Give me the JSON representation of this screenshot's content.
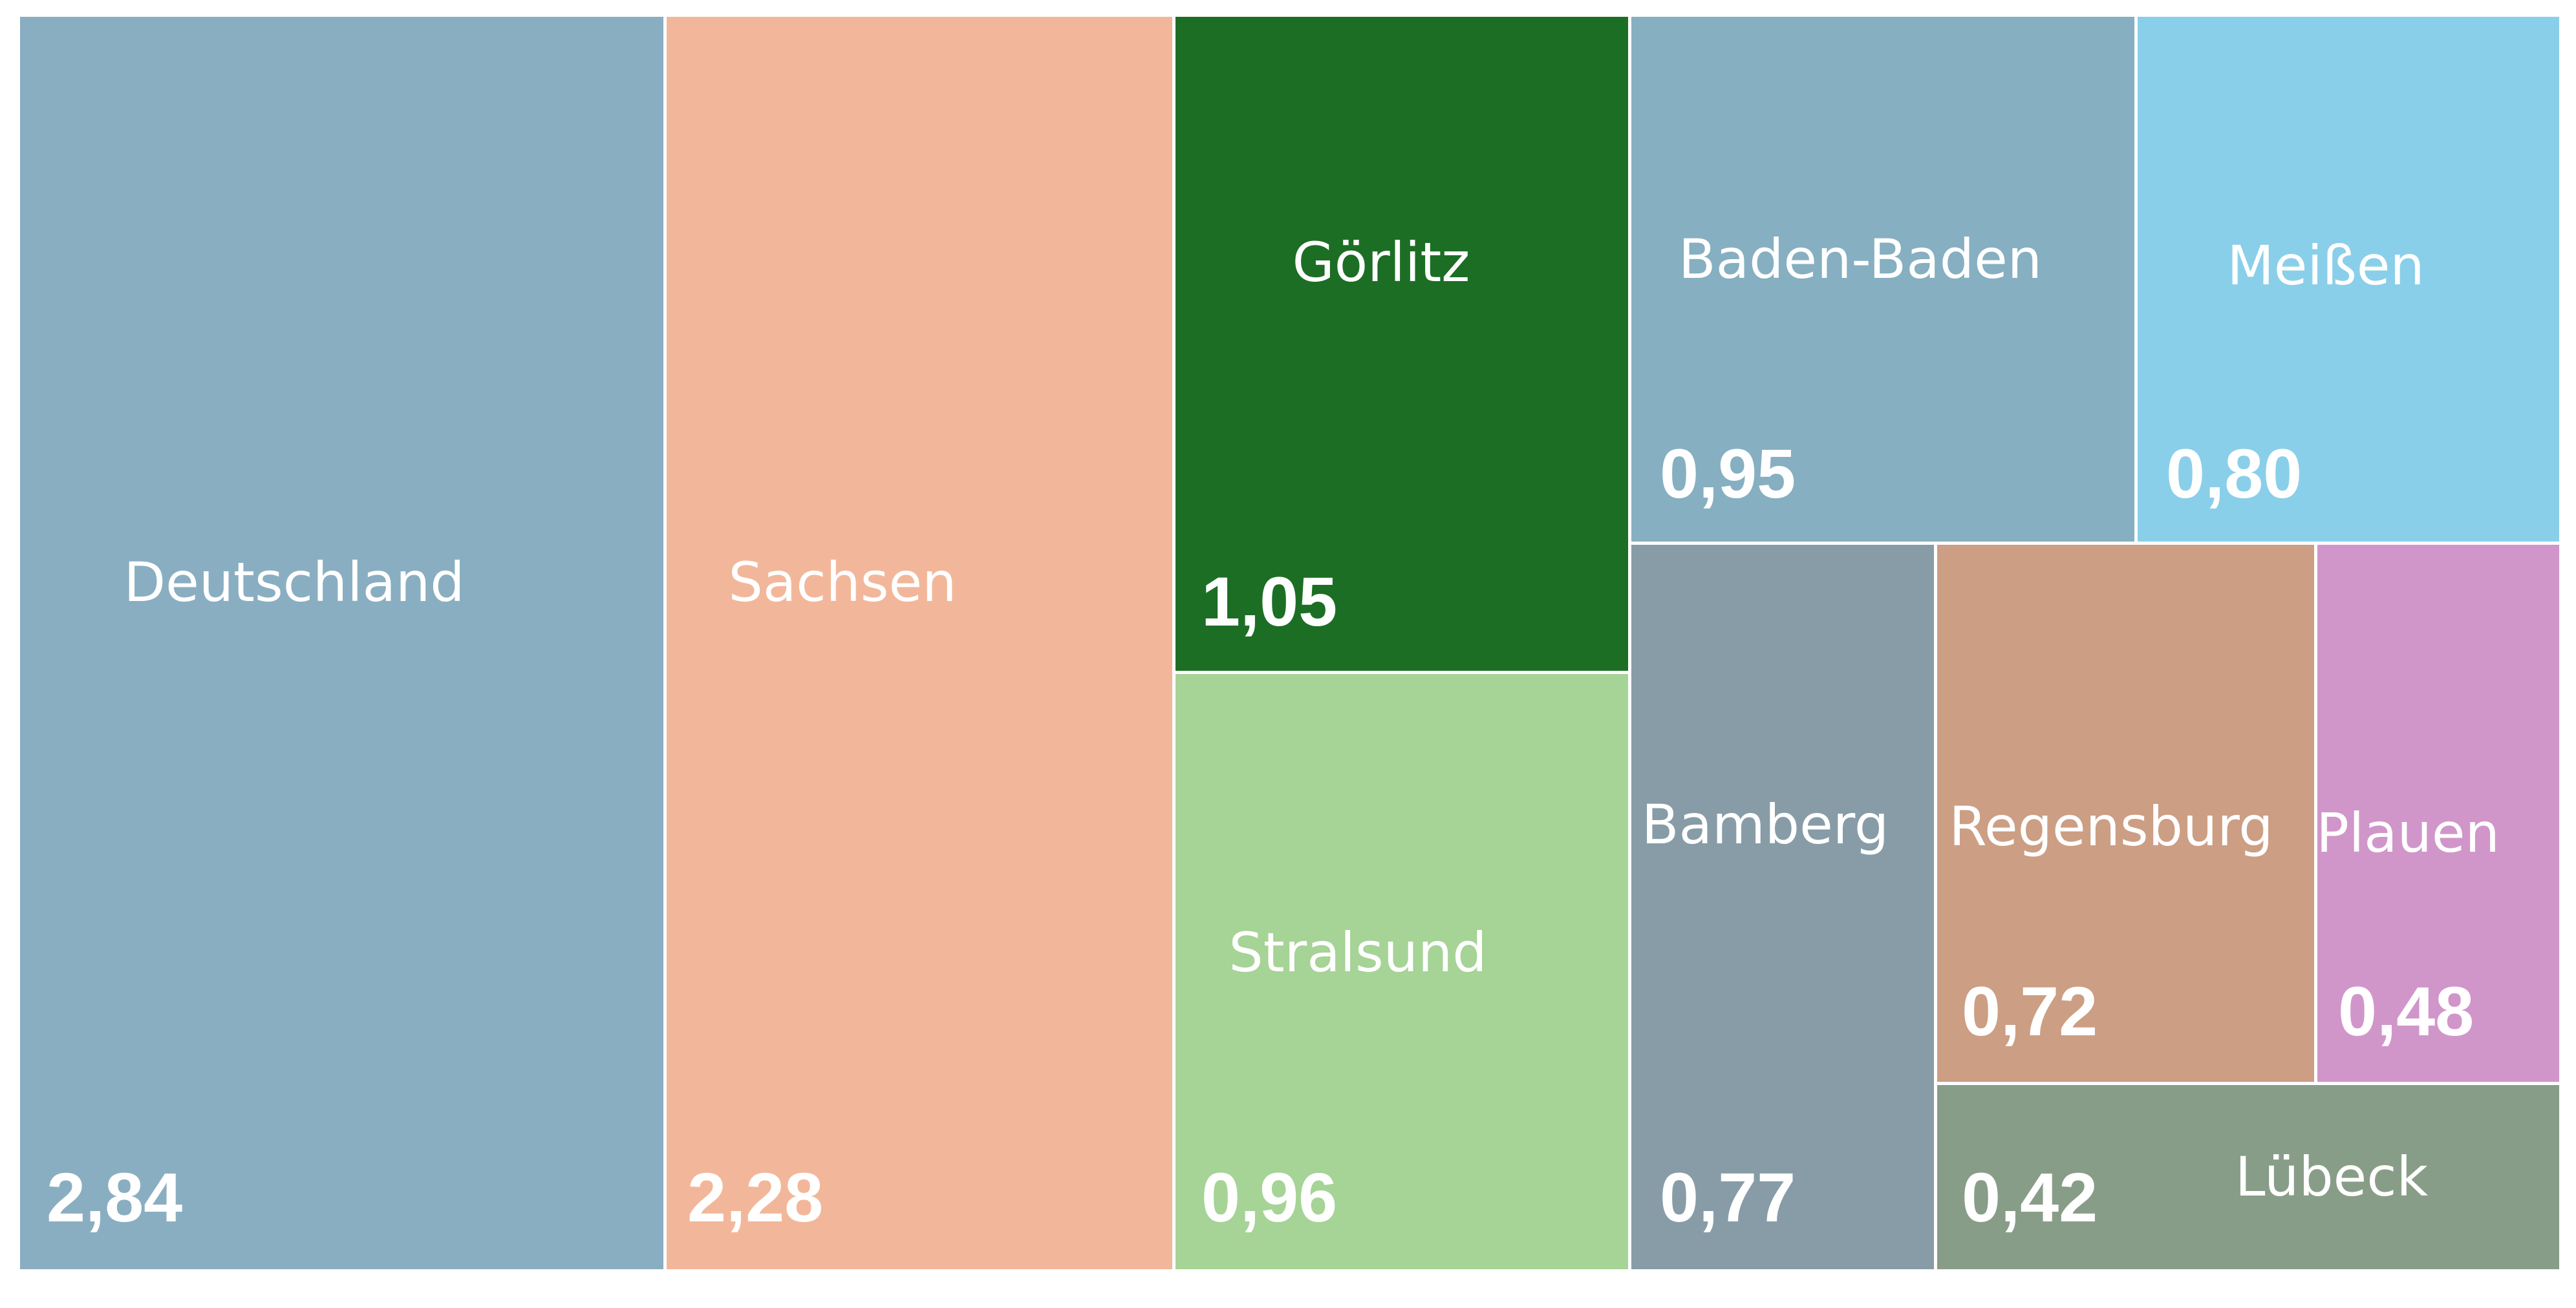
{
  "chart_data": {
    "type": "treemap",
    "title": "",
    "tiles": [
      {
        "name": "Deutschland",
        "value": 2.84,
        "value_label": "2,84",
        "color": "#8aaec1"
      },
      {
        "name": "Sachsen",
        "value": 2.28,
        "value_label": "2,28",
        "color": "#f2b79a"
      },
      {
        "name": "Görlitz",
        "value": 1.05,
        "value_label": "1,05",
        "color": "#1c6e25"
      },
      {
        "name": "Stralsund",
        "value": 0.96,
        "value_label": "0,96",
        "color": "#a6d396"
      },
      {
        "name": "Baden-Baden",
        "value": 0.95,
        "value_label": "0,95",
        "color": "#86afc1"
      },
      {
        "name": "Meißen",
        "value": 0.8,
        "value_label": "0,80",
        "color": "#8acfe9"
      },
      {
        "name": "Bamberg",
        "value": 0.77,
        "value_label": "0,77",
        "color": "#879ca7"
      },
      {
        "name": "Regensburg",
        "value": 0.72,
        "value_label": "0,72",
        "color": "#cc9e84"
      },
      {
        "name": "Plauen",
        "value": 0.48,
        "value_label": "0,48",
        "color": "#d096ca"
      },
      {
        "name": "Lübeck",
        "value": 0.42,
        "value_label": "0,42",
        "color": "#889d87"
      }
    ]
  }
}
